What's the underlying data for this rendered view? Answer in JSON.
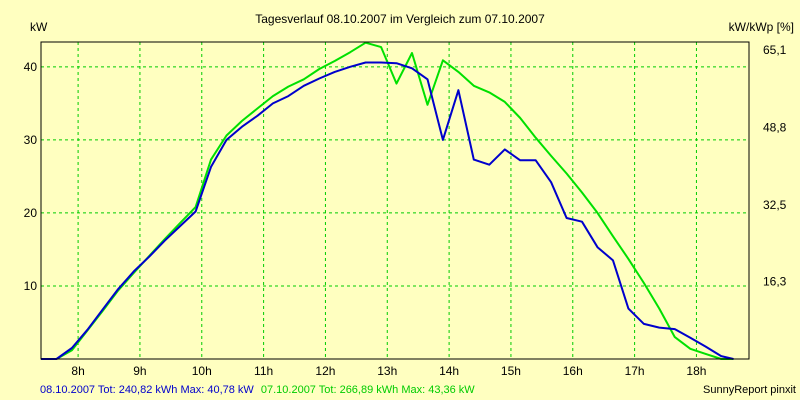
{
  "chart_data": {
    "type": "line",
    "title": "Tagesverlauf 08.10.2007 im Vergleich zum 07.10.2007",
    "ylabel_left": "kW",
    "ylabel_right": "kW/kWp [%]",
    "xlim": [
      7.4,
      18.85
    ],
    "ylim": [
      0,
      43.4
    ],
    "grid": true,
    "x_ticks": [
      {
        "value": 8,
        "label": "8h"
      },
      {
        "value": 9,
        "label": "9h"
      },
      {
        "value": 10,
        "label": "10h"
      },
      {
        "value": 11,
        "label": "11h"
      },
      {
        "value": 12,
        "label": "12h"
      },
      {
        "value": 13,
        "label": "13h"
      },
      {
        "value": 14,
        "label": "14h"
      },
      {
        "value": 15,
        "label": "15h"
      },
      {
        "value": 16,
        "label": "16h"
      },
      {
        "value": 17,
        "label": "17h"
      },
      {
        "value": 18,
        "label": "18h"
      }
    ],
    "y_ticks_left": [
      {
        "value": 10,
        "label": "10"
      },
      {
        "value": 20,
        "label": "20"
      },
      {
        "value": 30,
        "label": "30"
      },
      {
        "value": 40,
        "label": "40"
      }
    ],
    "y_ticks_right": [
      {
        "value": 10.6,
        "label": "16,3"
      },
      {
        "value": 21.1,
        "label": "32,5"
      },
      {
        "value": 31.7,
        "label": "48,8"
      },
      {
        "value": 42.3,
        "label": "65,1"
      }
    ],
    "series": [
      {
        "name": "08.10.2007",
        "color": "#0000cc",
        "points": [
          [
            7.4,
            0
          ],
          [
            7.65,
            0
          ],
          [
            7.9,
            1.5
          ],
          [
            8.15,
            4
          ],
          [
            8.4,
            6.8
          ],
          [
            8.65,
            9.6
          ],
          [
            8.9,
            12
          ],
          [
            9.15,
            14
          ],
          [
            9.4,
            16.2
          ],
          [
            9.65,
            18.2
          ],
          [
            9.9,
            20.2
          ],
          [
            10.15,
            26.3
          ],
          [
            10.4,
            30
          ],
          [
            10.65,
            31.8
          ],
          [
            10.9,
            33.3
          ],
          [
            11.15,
            35
          ],
          [
            11.4,
            36
          ],
          [
            11.65,
            37.4
          ],
          [
            11.9,
            38.4
          ],
          [
            12.15,
            39.3
          ],
          [
            12.4,
            40
          ],
          [
            12.65,
            40.6
          ],
          [
            12.9,
            40.6
          ],
          [
            13.15,
            40.5
          ],
          [
            13.4,
            39.8
          ],
          [
            13.65,
            38.3
          ],
          [
            13.9,
            30
          ],
          [
            14.15,
            36.8
          ],
          [
            14.4,
            27.3
          ],
          [
            14.65,
            26.6
          ],
          [
            14.9,
            28.7
          ],
          [
            15.15,
            27.2
          ],
          [
            15.4,
            27.2
          ],
          [
            15.65,
            24.2
          ],
          [
            15.9,
            19.3
          ],
          [
            16.15,
            18.8
          ],
          [
            16.4,
            15.3
          ],
          [
            16.65,
            13.5
          ],
          [
            16.9,
            6.9
          ],
          [
            17.15,
            4.8
          ],
          [
            17.4,
            4.3
          ],
          [
            17.65,
            4.1
          ],
          [
            17.9,
            2.9
          ],
          [
            18.15,
            1.7
          ],
          [
            18.4,
            0.4
          ],
          [
            18.6,
            0
          ]
        ]
      },
      {
        "name": "07.10.2007",
        "color": "#00e000",
        "points": [
          [
            7.4,
            0
          ],
          [
            7.65,
            0
          ],
          [
            7.9,
            1.2
          ],
          [
            8.15,
            3.9
          ],
          [
            8.4,
            6.6
          ],
          [
            8.65,
            9.4
          ],
          [
            8.9,
            11.8
          ],
          [
            9.15,
            14.1
          ],
          [
            9.4,
            16.4
          ],
          [
            9.65,
            18.6
          ],
          [
            9.9,
            20.8
          ],
          [
            10.15,
            27.3
          ],
          [
            10.4,
            30.6
          ],
          [
            10.65,
            32.6
          ],
          [
            10.9,
            34.3
          ],
          [
            11.15,
            36
          ],
          [
            11.4,
            37.3
          ],
          [
            11.65,
            38.3
          ],
          [
            11.9,
            39.7
          ],
          [
            12.15,
            40.8
          ],
          [
            12.4,
            42
          ],
          [
            12.65,
            43.3
          ],
          [
            12.9,
            42.7
          ],
          [
            13.15,
            37.7
          ],
          [
            13.4,
            41.9
          ],
          [
            13.65,
            34.8
          ],
          [
            13.9,
            40.9
          ],
          [
            14.15,
            39.3
          ],
          [
            14.4,
            37.4
          ],
          [
            14.65,
            36.5
          ],
          [
            14.9,
            35.2
          ],
          [
            15.15,
            33
          ],
          [
            15.4,
            30.3
          ],
          [
            15.65,
            27.8
          ],
          [
            15.9,
            25.4
          ],
          [
            16.15,
            22.8
          ],
          [
            16.4,
            20
          ],
          [
            16.65,
            16.8
          ],
          [
            16.9,
            13.7
          ],
          [
            17.15,
            10.4
          ],
          [
            17.4,
            6.9
          ],
          [
            17.65,
            3
          ],
          [
            17.9,
            1.4
          ],
          [
            18.15,
            0.7
          ],
          [
            18.4,
            0
          ],
          [
            18.6,
            0
          ]
        ]
      }
    ]
  },
  "footer": {
    "left_blue": "08.10.2007 Tot: 240,82 kWh Max: 40,78 kW",
    "left_green": "07.10.2007 Tot: 266,89 kWh Max: 43,36 kW",
    "right": "SunnyReport pinxit"
  },
  "colors": {
    "background": "#ffffc0",
    "grid": "#00cc00",
    "series_blue": "#0000cc",
    "series_green": "#00e000"
  }
}
